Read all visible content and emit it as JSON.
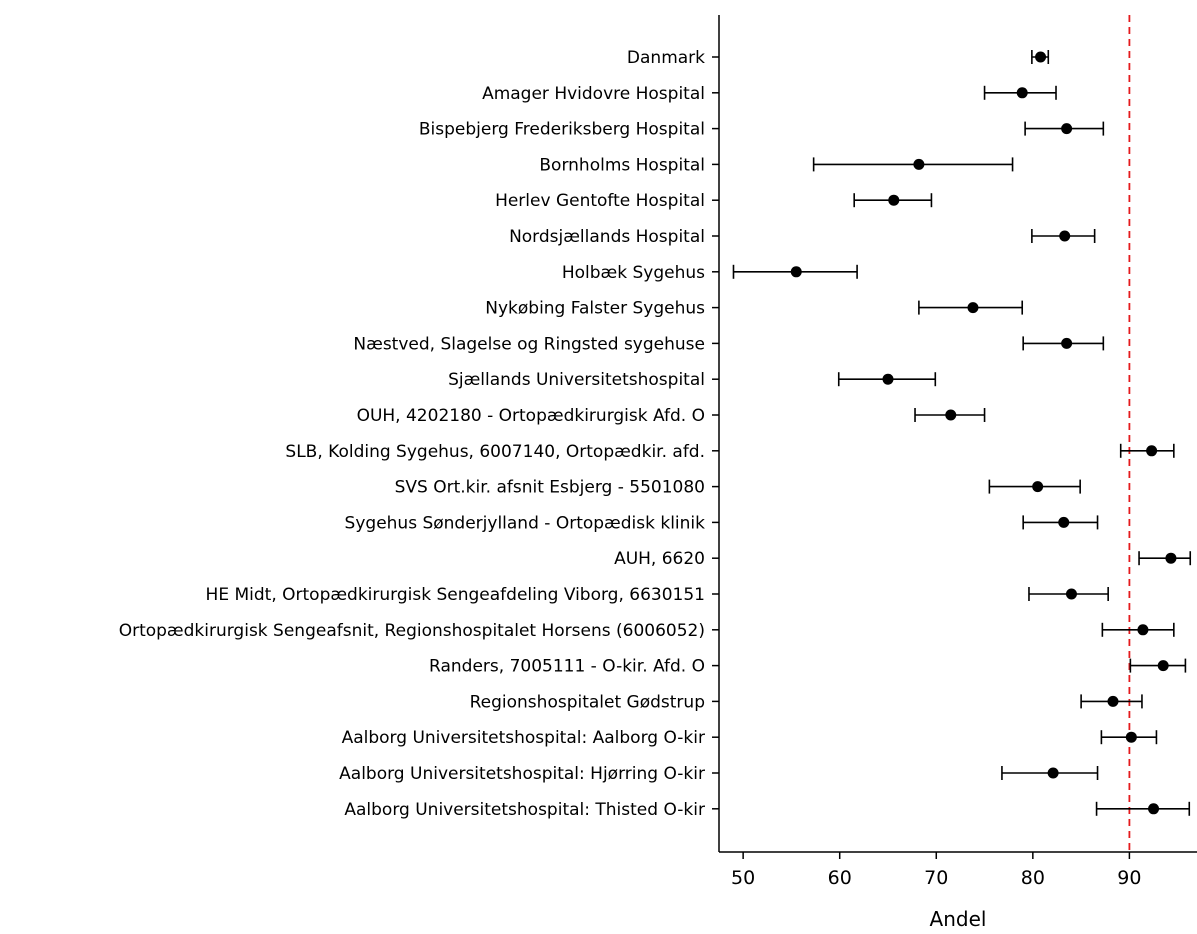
{
  "chart_data": {
    "type": "scatter",
    "subtype": "point-range",
    "title": "",
    "xlabel": "Andel",
    "ylabel": "",
    "xlim": [
      47.5,
      97.0
    ],
    "xticks": [
      50,
      60,
      70,
      80,
      90
    ],
    "xtick_labels": [
      "50",
      "60",
      "70",
      "80",
      "90"
    ],
    "reference_line": {
      "x": 90,
      "color": "#e41a1c",
      "style": "dashed"
    },
    "grid": false,
    "point_color": "#000000",
    "categories": [
      "Danmark",
      "Amager Hvidovre Hospital",
      "Bispebjerg Frederiksberg Hospital",
      "Bornholms Hospital",
      "Herlev Gentofte Hospital",
      "Nordsjællands Hospital",
      "Holbæk Sygehus",
      "Nykøbing Falster Sygehus",
      "Næstved, Slagelse og Ringsted sygehuse",
      "Sjællands Universitetshospital",
      "OUH, 4202180 - Ortopædkirurgisk Afd. O",
      "SLB, Kolding Sygehus, 6007140, Ortopædkir. afd.",
      "SVS Ort.kir. afsnit Esbjerg  - 5501080",
      "Sygehus Sønderjylland - Ortopædisk klinik",
      "AUH, 6620",
      "HE Midt, Ortopædkirurgisk Sengeafdeling Viborg, 6630151",
      "Ortopædkirurgisk Sengeafsnit, Regionshospitalet Horsens (6006052)",
      "Randers, 7005111 - O-kir. Afd. O",
      "Regionshospitalet Gødstrup",
      "Aalborg Universitetshospital: Aalborg O-kir",
      "Aalborg Universitetshospital: Hjørring O-kir",
      "Aalborg Universitetshospital: Thisted O-kir"
    ],
    "values": [
      80.8,
      78.9,
      83.5,
      68.2,
      65.6,
      83.3,
      55.5,
      73.8,
      83.5,
      65.0,
      71.5,
      92.3,
      80.5,
      83.2,
      94.3,
      84.0,
      91.4,
      93.5,
      88.3,
      90.2,
      82.1,
      92.5
    ],
    "lower": [
      79.9,
      75.0,
      79.2,
      57.3,
      61.5,
      79.9,
      49.0,
      68.2,
      79.0,
      59.9,
      67.8,
      89.1,
      75.5,
      79.0,
      91.0,
      79.6,
      87.2,
      90.1,
      85.0,
      87.1,
      76.8,
      86.6
    ],
    "upper": [
      81.6,
      82.4,
      87.3,
      77.9,
      69.5,
      86.4,
      61.8,
      78.9,
      87.3,
      69.9,
      75.0,
      94.6,
      84.9,
      86.7,
      96.3,
      87.8,
      94.6,
      95.8,
      91.3,
      92.8,
      86.7,
      96.2
    ]
  }
}
